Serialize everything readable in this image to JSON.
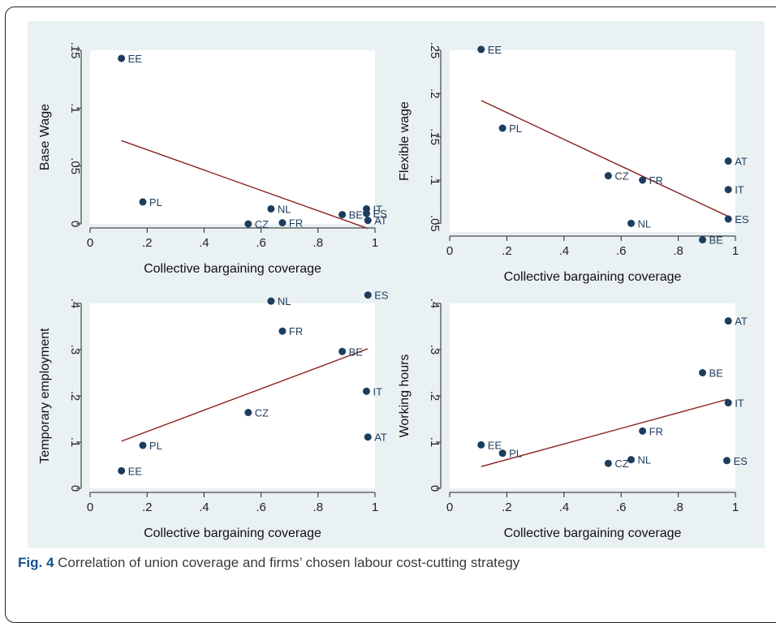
{
  "figure": {
    "label": "Fig. 4",
    "caption": "Correlation of union coverage and firms’ chosen labour cost-cutting strategy"
  },
  "colors": {
    "point": "#1d3d5d",
    "fit_line": "#8b2020",
    "panel_bg": "#eaf1f3",
    "plot_bg": "#ffffff"
  },
  "chart_data": [
    {
      "type": "scatter",
      "xlabel": "Collective bargaining coverage",
      "ylabel": "Base Wage",
      "xlim": [
        0,
        1
      ],
      "ylim": [
        0,
        0.15
      ],
      "xticks": [
        0,
        0.2,
        0.4,
        0.6,
        0.8,
        1
      ],
      "xtick_labels": [
        "0",
        ".2",
        ".4",
        ".6",
        ".8",
        "1"
      ],
      "yticks": [
        0,
        0.05,
        0.1,
        0.15
      ],
      "ytick_labels": [
        "0",
        ".05",
        ".1",
        ".15"
      ],
      "points": [
        {
          "label": "EE",
          "x": 0.11,
          "y": 0.143
        },
        {
          "label": "PL",
          "x": 0.185,
          "y": 0.019
        },
        {
          "label": "CZ",
          "x": 0.555,
          "y": 0.0
        },
        {
          "label": "NL",
          "x": 0.635,
          "y": 0.013
        },
        {
          "label": "FR",
          "x": 0.675,
          "y": 0.001
        },
        {
          "label": "BE",
          "x": 0.885,
          "y": 0.008
        },
        {
          "label": "IT",
          "x": 0.97,
          "y": 0.013
        },
        {
          "label": "ES",
          "x": 0.97,
          "y": 0.009
        },
        {
          "label": "AT",
          "x": 0.975,
          "y": 0.003
        }
      ],
      "fit_line": {
        "x": [
          0.11,
          0.975
        ],
        "y": [
          0.072,
          -0.004
        ]
      }
    },
    {
      "type": "scatter",
      "xlabel": "Collective bargaining coverage",
      "ylabel": "Flexible wage",
      "xlim": [
        0,
        1
      ],
      "ylim": [
        0.04,
        0.25
      ],
      "xticks": [
        0,
        0.2,
        0.4,
        0.6,
        0.8,
        1
      ],
      "xtick_labels": [
        "0",
        ".2",
        ".4",
        ".6",
        ".8",
        "1"
      ],
      "yticks": [
        0.05,
        0.1,
        0.15,
        0.2,
        0.25
      ],
      "ytick_labels": [
        ".05",
        ".1",
        ".15",
        ".2",
        ".25"
      ],
      "points": [
        {
          "label": "EE",
          "x": 0.11,
          "y": 0.251
        },
        {
          "label": "PL",
          "x": 0.185,
          "y": 0.16
        },
        {
          "label": "CZ",
          "x": 0.555,
          "y": 0.105
        },
        {
          "label": "FR",
          "x": 0.675,
          "y": 0.1
        },
        {
          "label": "NL",
          "x": 0.635,
          "y": 0.05
        },
        {
          "label": "BE",
          "x": 0.885,
          "y": 0.031
        },
        {
          "label": "AT",
          "x": 0.975,
          "y": 0.122
        },
        {
          "label": "IT",
          "x": 0.975,
          "y": 0.089
        },
        {
          "label": "ES",
          "x": 0.975,
          "y": 0.055
        }
      ],
      "fit_line": {
        "x": [
          0.11,
          0.975
        ],
        "y": [
          0.192,
          0.058
        ]
      }
    },
    {
      "type": "scatter",
      "xlabel": "Collective bargaining coverage",
      "ylabel": "Temporary employment",
      "xlim": [
        0,
        1
      ],
      "ylim": [
        0,
        0.4
      ],
      "xticks": [
        0,
        0.2,
        0.4,
        0.6,
        0.8,
        1
      ],
      "xtick_labels": [
        "0",
        ".2",
        ".4",
        ".6",
        ".8",
        "1"
      ],
      "yticks": [
        0,
        0.1,
        0.2,
        0.3,
        0.4
      ],
      "ytick_labels": [
        "0",
        ".1",
        ".2",
        ".3",
        ".4"
      ],
      "points": [
        {
          "label": "EE",
          "x": 0.11,
          "y": 0.038
        },
        {
          "label": "PL",
          "x": 0.185,
          "y": 0.093
        },
        {
          "label": "CZ",
          "x": 0.555,
          "y": 0.164
        },
        {
          "label": "NL",
          "x": 0.635,
          "y": 0.405
        },
        {
          "label": "FR",
          "x": 0.675,
          "y": 0.34
        },
        {
          "label": "BE",
          "x": 0.885,
          "y": 0.296
        },
        {
          "label": "ES",
          "x": 0.975,
          "y": 0.418
        },
        {
          "label": "IT",
          "x": 0.97,
          "y": 0.21
        },
        {
          "label": "AT",
          "x": 0.975,
          "y": 0.111
        }
      ],
      "fit_line": {
        "x": [
          0.11,
          0.975
        ],
        "y": [
          0.102,
          0.302
        ]
      }
    },
    {
      "type": "scatter",
      "xlabel": "Collective bargaining coverage",
      "ylabel": "Working hours",
      "xlim": [
        0,
        1
      ],
      "ylim": [
        0,
        0.4
      ],
      "xticks": [
        0,
        0.2,
        0.4,
        0.6,
        0.8,
        1
      ],
      "xtick_labels": [
        "0",
        ".2",
        ".4",
        ".6",
        ".8",
        "1"
      ],
      "yticks": [
        0,
        0.1,
        0.2,
        0.3,
        0.4
      ],
      "ytick_labels": [
        "0",
        ".1",
        ".2",
        ".3",
        ".4"
      ],
      "points": [
        {
          "label": "EE",
          "x": 0.11,
          "y": 0.094
        },
        {
          "label": "PL",
          "x": 0.185,
          "y": 0.076
        },
        {
          "label": "CZ",
          "x": 0.555,
          "y": 0.054
        },
        {
          "label": "NL",
          "x": 0.635,
          "y": 0.062
        },
        {
          "label": "FR",
          "x": 0.675,
          "y": 0.124
        },
        {
          "label": "BE",
          "x": 0.885,
          "y": 0.25
        },
        {
          "label": "AT",
          "x": 0.975,
          "y": 0.362
        },
        {
          "label": "IT",
          "x": 0.975,
          "y": 0.185
        },
        {
          "label": "ES",
          "x": 0.97,
          "y": 0.06
        }
      ],
      "fit_line": {
        "x": [
          0.11,
          0.975
        ],
        "y": [
          0.047,
          0.193
        ]
      }
    }
  ]
}
